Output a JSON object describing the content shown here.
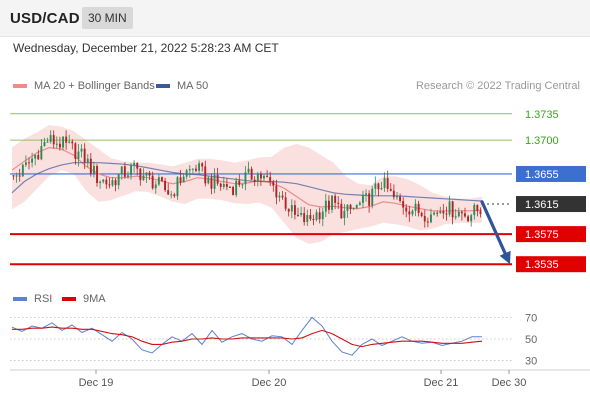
{
  "header": {
    "pair": "USD/CAD",
    "timeframe": "30 MIN"
  },
  "timestamp": "Wednesday, December 21, 2022 5:28:23 AM CET",
  "legend": {
    "bollinger_label": "MA 20 + Bollinger Bands",
    "ma50_label": "MA 50",
    "credit": "Research © 2022 Trading Central"
  },
  "rsi_legend": {
    "rsi_label": "RSI",
    "ma_label": "9MA"
  },
  "colors": {
    "bollinger": "#f08a8a",
    "band_fill": "#fbe0e0",
    "ma50": "#3a5a98",
    "bull": "#2e8b57",
    "bear": "#b22222",
    "resistance_line": "#8dc45a",
    "resistance_label": "#3aa41c",
    "pivot_line": "#3d6fce",
    "pivot_label_bg": "#3d6fce",
    "support_line": "#e00000",
    "support_label_bg": "#e00000",
    "current_label_bg": "#333333",
    "arrow": "#2f5597",
    "rsi": "#5c82d6",
    "rsi_ma": "#d01010"
  },
  "chart_data": [
    {
      "type": "candlestick",
      "x_ticks": [
        "Dec 19",
        "Dec 20",
        "Dec 21",
        "Dec 30"
      ],
      "ylim": [
        1.351,
        1.376
      ],
      "current_price": 1.3615,
      "levels": [
        {
          "value": 1.3735,
          "label": "1.3735",
          "role": "resistance"
        },
        {
          "value": 1.37,
          "label": "1.3700",
          "role": "resistance"
        },
        {
          "value": 1.3655,
          "label": "1.3655",
          "role": "pivot"
        },
        {
          "value": 1.3615,
          "label": "1.3615",
          "role": "current"
        },
        {
          "value": 1.3575,
          "label": "1.3575",
          "role": "support"
        },
        {
          "value": 1.3535,
          "label": "1.3535",
          "role": "support"
        }
      ],
      "forecast_arrow": {
        "from": 1.3618,
        "to": 1.3535,
        "direction": "down"
      },
      "close_path": [
        1.3648,
        1.366,
        1.368,
        1.37,
        1.3696,
        1.3688,
        1.3676,
        1.365,
        1.3642,
        1.3655,
        1.3662,
        1.365,
        1.364,
        1.3628,
        1.3655,
        1.3664,
        1.3646,
        1.364,
        1.3638,
        1.365,
        1.3655,
        1.3642,
        1.3622,
        1.3598,
        1.3593,
        1.3605,
        1.3617,
        1.3602,
        1.3611,
        1.3623,
        1.3644,
        1.3622,
        1.3612,
        1.3605,
        1.36,
        1.3612,
        1.3605,
        1.3601,
        1.3608
      ],
      "bollinger_mid": [
        1.366,
        1.3672,
        1.3683,
        1.369,
        1.3688,
        1.368,
        1.3665,
        1.3655,
        1.365,
        1.365,
        1.3652,
        1.365,
        1.3646,
        1.3642,
        1.3645,
        1.365,
        1.3648,
        1.3645,
        1.3642,
        1.3643,
        1.3646,
        1.3643,
        1.3636,
        1.3625,
        1.3614,
        1.3611,
        1.3612,
        1.361,
        1.3609,
        1.3612,
        1.3618,
        1.3616,
        1.3612,
        1.3609,
        1.3606,
        1.3606,
        1.3606,
        1.3606,
        1.3607
      ],
      "bollinger_upper": [
        1.369,
        1.3702,
        1.371,
        1.372,
        1.3718,
        1.3712,
        1.37,
        1.3688,
        1.3676,
        1.3672,
        1.367,
        1.367,
        1.3668,
        1.3665,
        1.367,
        1.3675,
        1.3675,
        1.3673,
        1.367,
        1.3673,
        1.3677,
        1.3678,
        1.369,
        1.3695,
        1.369,
        1.368,
        1.367,
        1.3652,
        1.3642,
        1.364,
        1.3652,
        1.3652,
        1.3648,
        1.364,
        1.363,
        1.3625,
        1.3622,
        1.3622,
        1.3625
      ],
      "bollinger_lower": [
        1.3608,
        1.3618,
        1.3635,
        1.3652,
        1.366,
        1.3655,
        1.3632,
        1.3618,
        1.362,
        1.3626,
        1.3632,
        1.3631,
        1.3625,
        1.3618,
        1.3615,
        1.3622,
        1.3622,
        1.362,
        1.3616,
        1.3615,
        1.3617,
        1.361,
        1.359,
        1.357,
        1.3562,
        1.3565,
        1.3575,
        1.3578,
        1.3582,
        1.3585,
        1.359,
        1.3588,
        1.3585,
        1.358,
        1.3582,
        1.3588,
        1.359,
        1.359,
        1.359
      ],
      "ma50": [
        1.363,
        1.3645,
        1.3655,
        1.3662,
        1.3667,
        1.367,
        1.367,
        1.367,
        1.3669,
        1.3668,
        1.3666,
        1.3663,
        1.366,
        1.3657,
        1.3655,
        1.3654,
        1.3652,
        1.365,
        1.3648,
        1.3646,
        1.3645,
        1.3645,
        1.3644,
        1.3642,
        1.3638,
        1.3634,
        1.363,
        1.3628,
        1.3627,
        1.3626,
        1.3626,
        1.3626,
        1.3625,
        1.3624,
        1.3623,
        1.3622,
        1.3621,
        1.362,
        1.3619
      ]
    },
    {
      "type": "line",
      "name": "RSI",
      "ylim": [
        25,
        75
      ],
      "y_ticks": [
        30,
        50,
        70
      ],
      "rsi": [
        61,
        57,
        62,
        60,
        65,
        58,
        63,
        56,
        60,
        54,
        48,
        56,
        50,
        40,
        37,
        45,
        52,
        48,
        55,
        45,
        58,
        47,
        52,
        55,
        50,
        48,
        53,
        52,
        45,
        58,
        70,
        62,
        48,
        38,
        35,
        45,
        50,
        44,
        48,
        52,
        48,
        46,
        47,
        44,
        46,
        48,
        52,
        52
      ],
      "rsi_ma": [
        59,
        59,
        60,
        60,
        61,
        60,
        60,
        59,
        59,
        57,
        55,
        54,
        52,
        48,
        45,
        45,
        47,
        48,
        50,
        50,
        51,
        50,
        50,
        51,
        51,
        51,
        51,
        51,
        50,
        51,
        55,
        58,
        55,
        50,
        45,
        43,
        45,
        46,
        47,
        48,
        48,
        48,
        47,
        46,
        46,
        46,
        47,
        48
      ]
    }
  ]
}
